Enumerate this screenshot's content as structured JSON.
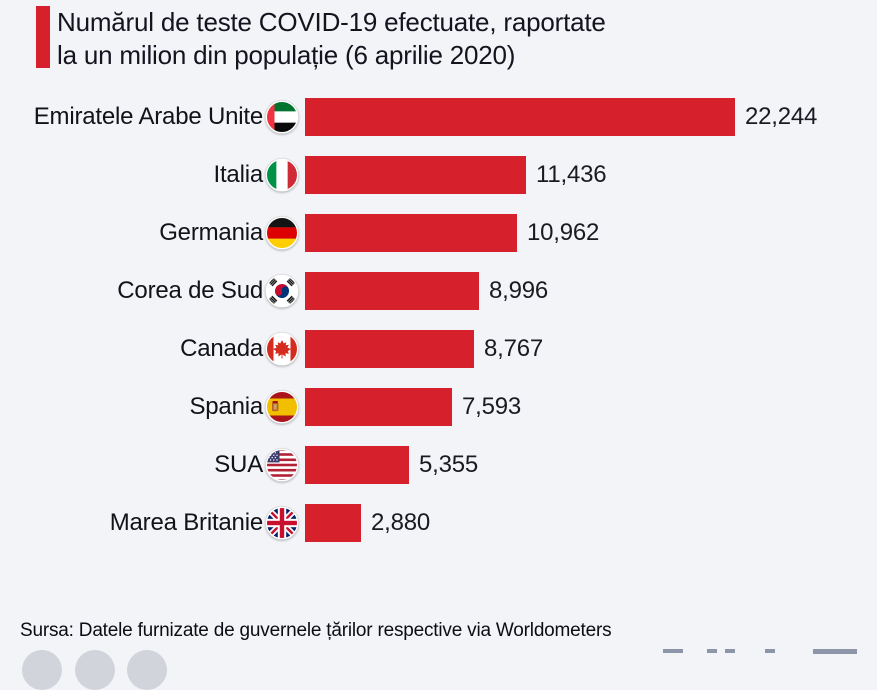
{
  "header": {
    "title_line1": "Numărul de teste COVID-19 efectuate, raportate",
    "title_line2": "la un milion din populație (6 aprilie 2020)"
  },
  "source_text": "Sursa: Datele furnizate de guvernele țărilor respective via Worldometers",
  "colors": {
    "bar": "#d6212c",
    "accent": "#d6212c",
    "background": "#f2f4f8",
    "title_text": "#14141f"
  },
  "chart_data": {
    "type": "bar",
    "orientation": "horizontal",
    "title": "Numărul de teste COVID-19 efectuate, raportate la un milion din populație (6 aprilie 2020)",
    "categories": [
      "Emiratele Arabe Unite",
      "Italia",
      "Germania",
      "Corea de Sud",
      "Canada",
      "Spania",
      "SUA",
      "Marea Britanie"
    ],
    "values": [
      22244,
      11436,
      10962,
      8996,
      8767,
      7593,
      5355,
      2880
    ],
    "value_labels": [
      "22,244",
      "11,436",
      "10,962",
      "8,996",
      "8,767",
      "7,593",
      "5,355",
      "2,880"
    ],
    "flags": [
      "ae",
      "it",
      "de",
      "kr",
      "ca",
      "es",
      "us",
      "gb"
    ],
    "xlim": [
      0,
      22244
    ],
    "grid": false,
    "legend": false,
    "source": "Sursa: Datele furnizate de guvernele țărilor respective via Worldometers"
  }
}
